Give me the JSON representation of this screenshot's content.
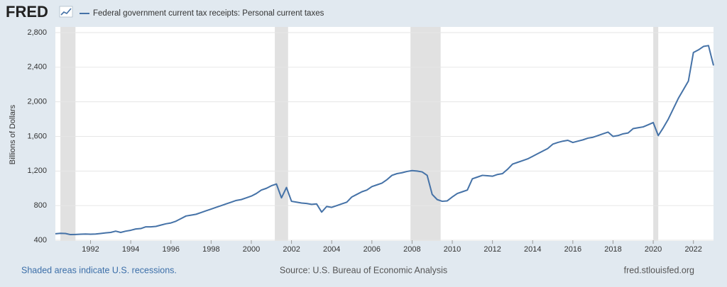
{
  "chart_data": {
    "type": "line",
    "logo": "FRED",
    "ylabel": "Billions of Dollars",
    "footer_left": "Shaded areas indicate U.S. recessions.",
    "footer_center": "Source: U.S. Bureau of Economic Analysis",
    "footer_right": "fred.stlouisfed.org",
    "x": [
      1990.25,
      1990.5,
      1990.75,
      1991,
      1991.25,
      1991.5,
      1991.75,
      1992,
      1992.25,
      1992.5,
      1992.75,
      1993,
      1993.25,
      1993.5,
      1993.75,
      1994,
      1994.25,
      1994.5,
      1994.75,
      1995,
      1995.25,
      1995.5,
      1995.75,
      1996,
      1996.25,
      1996.5,
      1996.75,
      1997,
      1997.25,
      1997.5,
      1997.75,
      1998,
      1998.25,
      1998.5,
      1998.75,
      1999,
      1999.25,
      1999.5,
      1999.75,
      2000,
      2000.25,
      2000.5,
      2000.75,
      2001,
      2001.25,
      2001.5,
      2001.75,
      2002,
      2002.25,
      2002.5,
      2002.75,
      2003,
      2003.25,
      2003.5,
      2003.75,
      2004,
      2004.25,
      2004.5,
      2004.75,
      2005,
      2005.25,
      2005.5,
      2005.75,
      2006,
      2006.25,
      2006.5,
      2006.75,
      2007,
      2007.25,
      2007.5,
      2007.75,
      2008,
      2008.25,
      2008.5,
      2008.75,
      2009,
      2009.25,
      2009.5,
      2009.75,
      2010,
      2010.25,
      2010.5,
      2010.75,
      2011,
      2011.25,
      2011.5,
      2011.75,
      2012,
      2012.25,
      2012.5,
      2012.75,
      2013,
      2013.25,
      2013.5,
      2013.75,
      2014,
      2014.25,
      2014.5,
      2014.75,
      2015,
      2015.25,
      2015.5,
      2015.75,
      2016,
      2016.25,
      2016.5,
      2016.75,
      2017,
      2017.25,
      2017.5,
      2017.75,
      2018,
      2018.25,
      2018.5,
      2018.75,
      2019,
      2019.25,
      2019.5,
      2019.75,
      2020,
      2020.25,
      2020.5,
      2020.75,
      2021,
      2021.25,
      2021.5,
      2021.75,
      2022,
      2022.25,
      2022.5,
      2022.75,
      2023
    ],
    "series": [
      {
        "name": "Federal government current tax receipts: Personal current taxes",
        "color": "#4572a7",
        "values": [
          475,
          480,
          478,
          465,
          467,
          470,
          472,
          470,
          472,
          478,
          485,
          490,
          505,
          490,
          505,
          515,
          530,
          535,
          555,
          555,
          560,
          575,
          590,
          600,
          620,
          650,
          680,
          690,
          700,
          720,
          740,
          760,
          780,
          800,
          820,
          840,
          860,
          870,
          890,
          910,
          940,
          980,
          1000,
          1030,
          1050,
          890,
          1010,
          850,
          840,
          830,
          825,
          815,
          820,
          725,
          790,
          780,
          800,
          820,
          840,
          900,
          930,
          960,
          980,
          1020,
          1040,
          1060,
          1100,
          1150,
          1170,
          1180,
          1195,
          1205,
          1200,
          1190,
          1150,
          930,
          870,
          850,
          855,
          900,
          940,
          960,
          980,
          1110,
          1130,
          1150,
          1145,
          1140,
          1160,
          1170,
          1220,
          1280,
          1300,
          1320,
          1340,
          1370,
          1400,
          1430,
          1460,
          1510,
          1530,
          1545,
          1555,
          1530,
          1545,
          1560,
          1580,
          1590,
          1610,
          1630,
          1650,
          1600,
          1610,
          1630,
          1640,
          1690,
          1700,
          1710,
          1735,
          1760,
          1610,
          1700,
          1800,
          1920,
          2040,
          2140,
          2240,
          2570,
          2600,
          2640,
          2650,
          2420
        ]
      }
    ],
    "recessions": [
      [
        1990.5,
        1991.25
      ],
      [
        2001.17,
        2001.83
      ],
      [
        2007.92,
        2009.42
      ],
      [
        2020.0,
        2020.25
      ]
    ],
    "recession_color": "#e1e1e1",
    "xlim": [
      1990.25,
      2023.0
    ],
    "xticks": [
      1992,
      1994,
      1996,
      1998,
      2000,
      2002,
      2004,
      2006,
      2008,
      2010,
      2012,
      2014,
      2016,
      2018,
      2020,
      2022
    ],
    "ylim": [
      400,
      2800
    ],
    "yticks": [
      400,
      800,
      {
        "value": 1200,
        "label": "1,200"
      },
      {
        "value": 1600,
        "label": "1,600"
      },
      {
        "value": 2000,
        "label": "2,000"
      },
      {
        "value": 2400,
        "label": "2,400"
      },
      {
        "value": 2800,
        "label": "2,800"
      }
    ],
    "grid": true
  }
}
